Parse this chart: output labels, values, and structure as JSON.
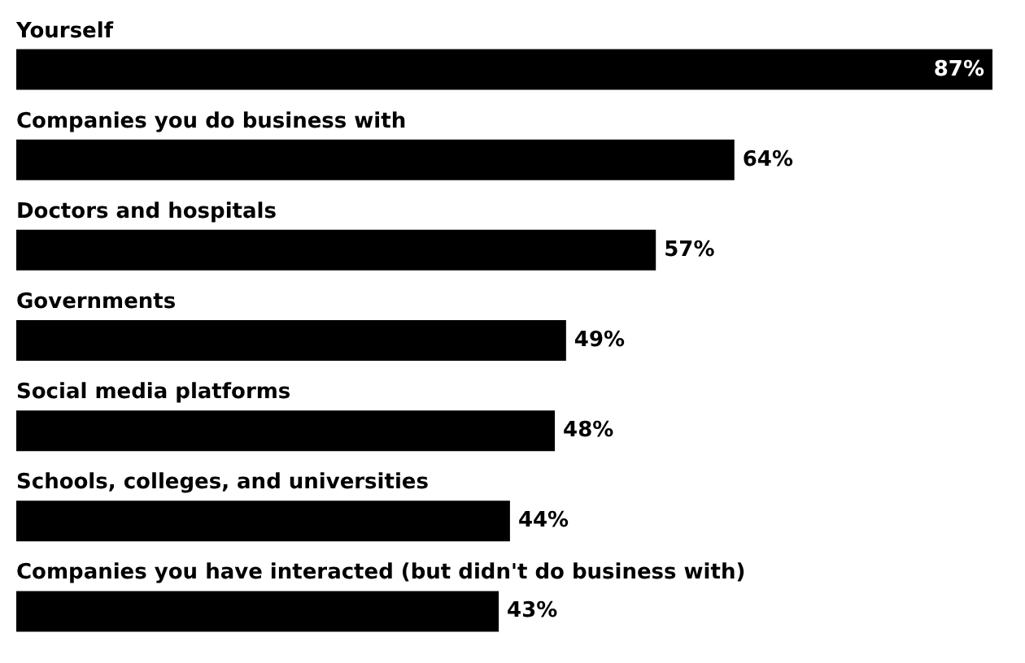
{
  "chart_data": {
    "type": "bar",
    "orientation": "horizontal",
    "categories": [
      "Yourself",
      "Companies you do business with",
      "Doctors and hospitals",
      "Governments",
      "Social media platforms",
      "Schools, colleges, and universities",
      "Companies you have interacted (but didn't do business with)"
    ],
    "values": [
      87,
      64,
      57,
      49,
      48,
      44,
      43
    ],
    "color": "#000000",
    "data_labels": true,
    "value_labels": [
      "87%",
      "64%",
      "57%",
      "49%",
      "48%",
      "44%",
      "43%"
    ]
  }
}
